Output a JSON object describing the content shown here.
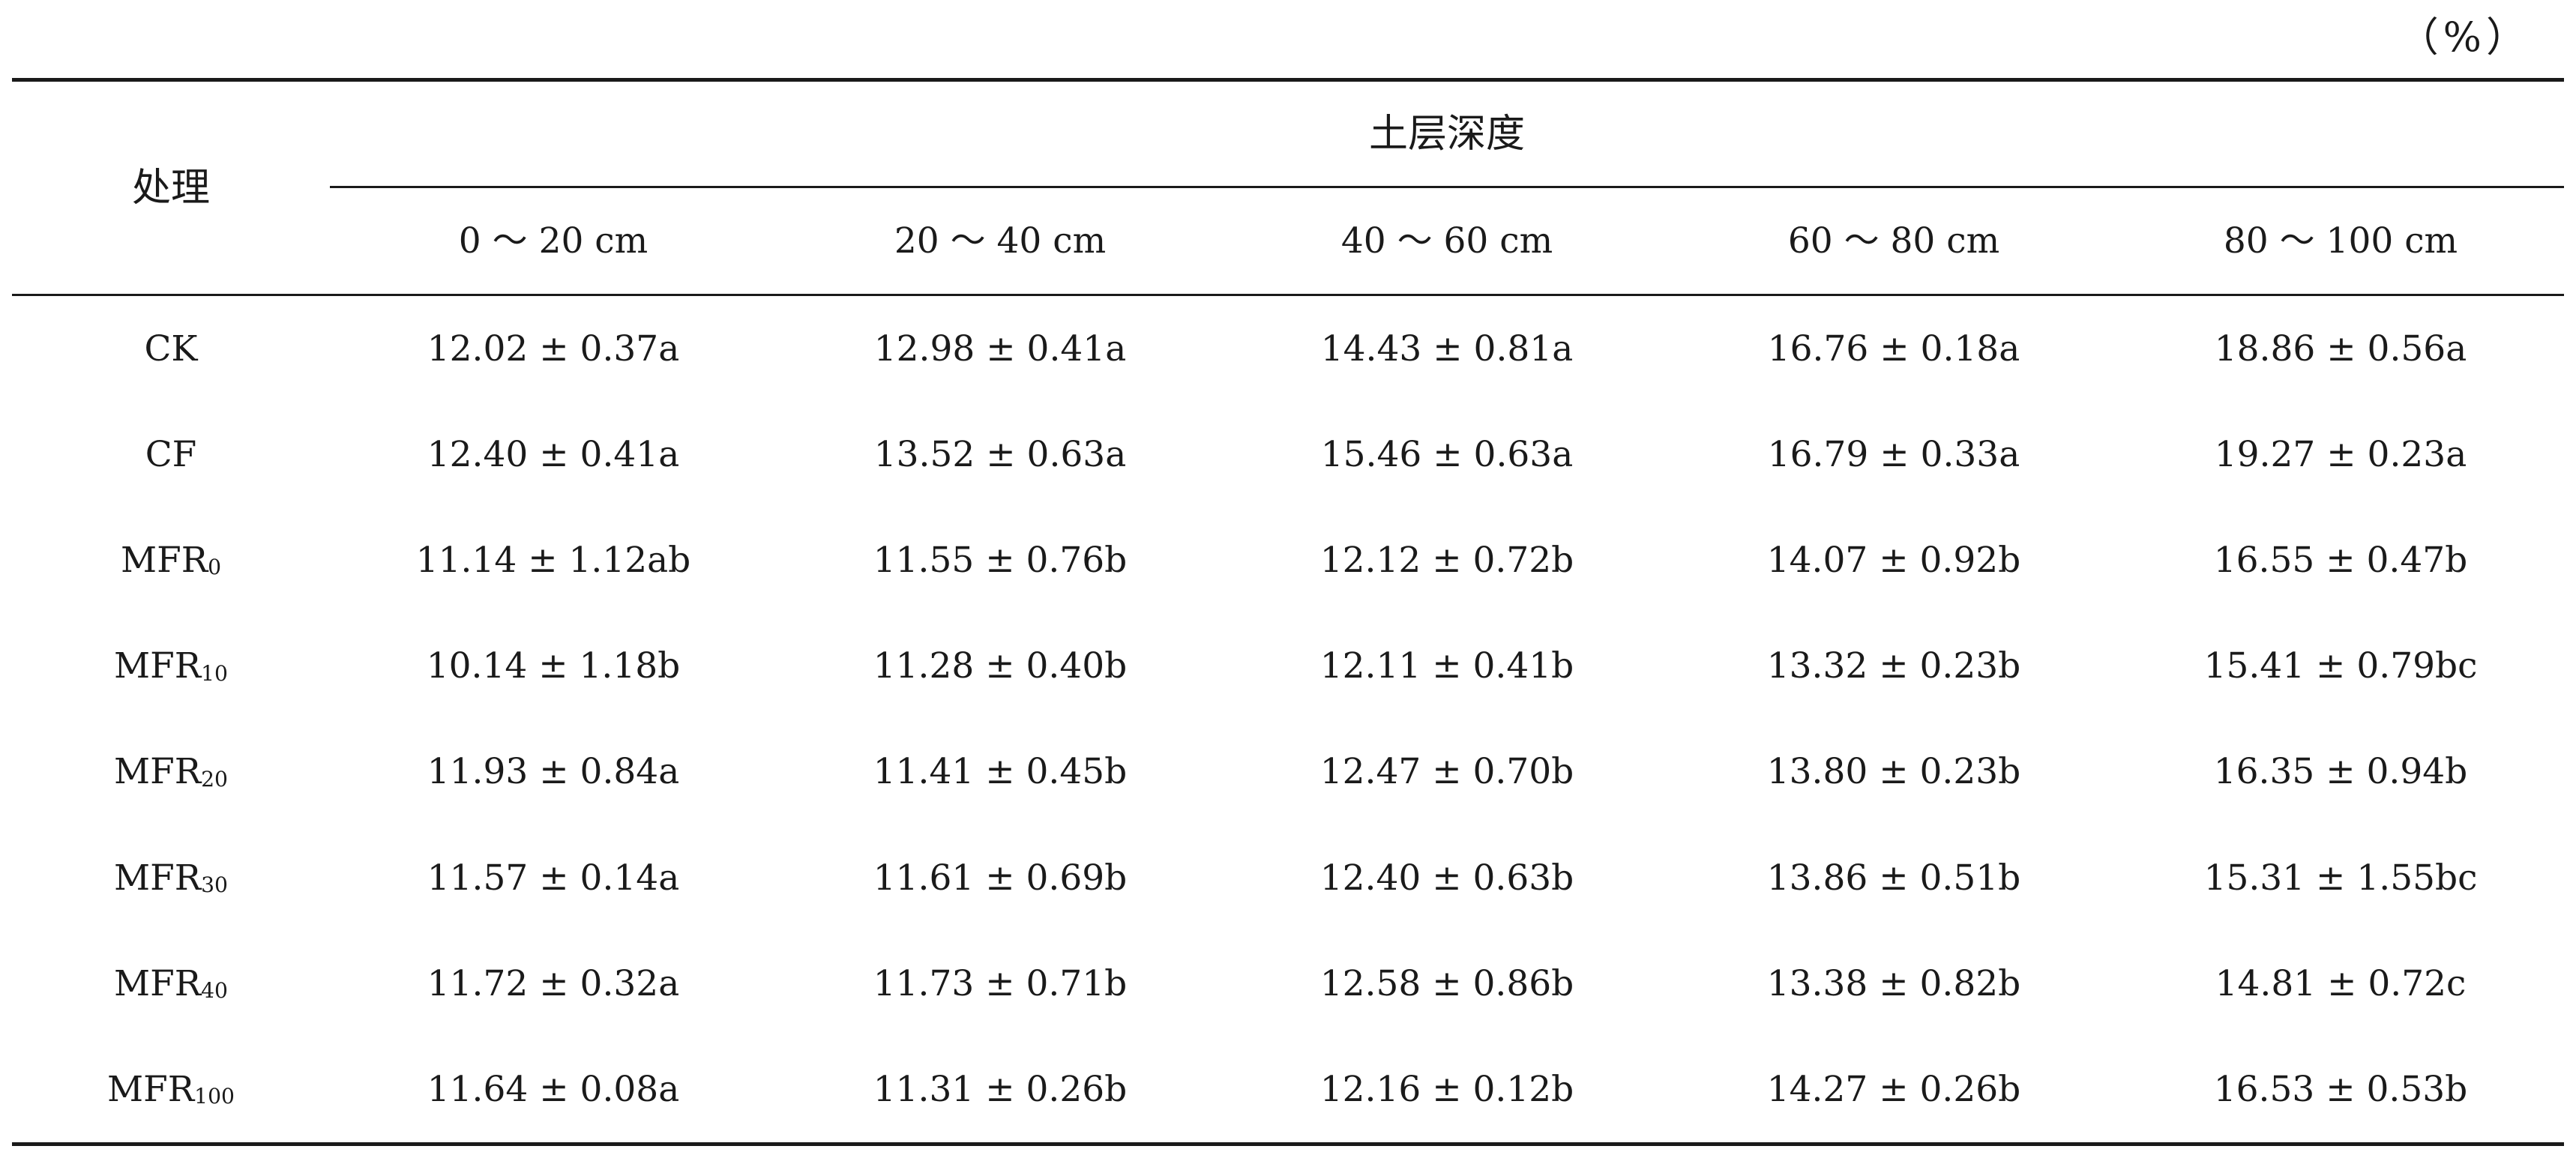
{
  "unit_label": "（%）",
  "table": {
    "header": {
      "treatment": "处理",
      "group": "土层深度",
      "columns": [
        "0 ～ 20 cm",
        "20 ～ 40 cm",
        "40 ～ 60 cm",
        "60 ～ 80 cm",
        "80 ～ 100 cm"
      ]
    },
    "rows": [
      {
        "name": "CK",
        "sub": "",
        "values": [
          "12.02 ± 0.37a",
          "12.98 ± 0.41a",
          "14.43 ± 0.81a",
          "16.76 ± 0.18a",
          "18.86 ± 0.56a"
        ]
      },
      {
        "name": "CF",
        "sub": "",
        "values": [
          "12.40 ± 0.41a",
          "13.52 ± 0.63a",
          "15.46 ± 0.63a",
          "16.79 ± 0.33a",
          "19.27 ± 0.23a"
        ]
      },
      {
        "name": "MFR",
        "sub": "0",
        "values": [
          "11.14 ± 1.12ab",
          "11.55 ± 0.76b",
          "12.12 ± 0.72b",
          "14.07 ± 0.92b",
          "16.55 ± 0.47b"
        ]
      },
      {
        "name": "MFR",
        "sub": "10",
        "values": [
          "10.14 ± 1.18b",
          "11.28 ± 0.40b",
          "12.11 ± 0.41b",
          "13.32 ± 0.23b",
          "15.41 ± 0.79bc"
        ]
      },
      {
        "name": "MFR",
        "sub": "20",
        "values": [
          "11.93 ± 0.84a",
          "11.41 ± 0.45b",
          "12.47 ± 0.70b",
          "13.80 ± 0.23b",
          "16.35 ± 0.94b"
        ]
      },
      {
        "name": "MFR",
        "sub": "30",
        "values": [
          "11.57 ± 0.14a",
          "11.61 ± 0.69b",
          "12.40 ± 0.63b",
          "13.86 ± 0.51b",
          "15.31 ± 1.55bc"
        ]
      },
      {
        "name": "MFR",
        "sub": "40",
        "values": [
          "11.72 ± 0.32a",
          "11.73 ± 0.71b",
          "12.58 ± 0.86b",
          "13.38 ± 0.82b",
          "14.81 ± 0.72c"
        ]
      },
      {
        "name": "MFR",
        "sub": "100",
        "values": [
          "11.64 ± 0.08a",
          "11.31 ± 0.26b",
          "12.16 ± 0.12b",
          "14.27 ± 0.26b",
          "16.53 ± 0.53b"
        ]
      }
    ]
  }
}
